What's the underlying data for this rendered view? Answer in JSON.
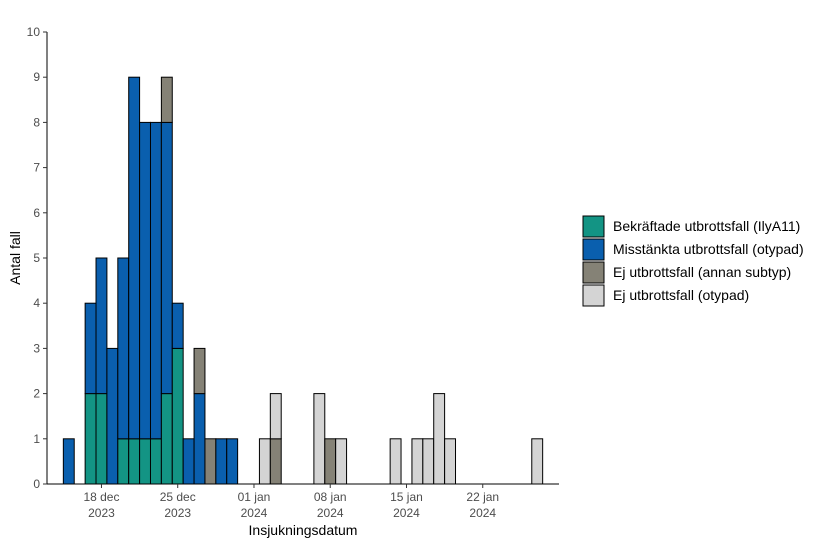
{
  "chart_data": {
    "type": "bar",
    "stacked": true,
    "xlabel": "Insjukningsdatum",
    "ylabel": "Antal fall",
    "ylim": [
      0,
      10
    ],
    "yticks": [
      "0",
      "1",
      "2",
      "3",
      "4",
      "5",
      "6",
      "7",
      "8",
      "9",
      "10"
    ],
    "xlim": [
      "2023-12-13",
      "2024-01-29"
    ],
    "xticks": [
      {
        "date": "2023-12-18",
        "line1": "18 dec",
        "line2": "2023"
      },
      {
        "date": "2023-12-25",
        "line1": "25 dec",
        "line2": "2023"
      },
      {
        "date": "2024-01-01",
        "line1": "01 jan",
        "line2": "2024"
      },
      {
        "date": "2024-01-08",
        "line1": "08 jan",
        "line2": "2024"
      },
      {
        "date": "2024-01-15",
        "line1": "15 jan",
        "line2": "2024"
      },
      {
        "date": "2024-01-22",
        "line1": "22 jan",
        "line2": "2024"
      }
    ],
    "grid": false,
    "legend_position": "right",
    "x": [
      "2023-12-15",
      "2023-12-16",
      "2023-12-17",
      "2023-12-18",
      "2023-12-19",
      "2023-12-20",
      "2023-12-21",
      "2023-12-22",
      "2023-12-23",
      "2023-12-24",
      "2023-12-25",
      "2023-12-26",
      "2023-12-27",
      "2023-12-28",
      "2023-12-29",
      "2023-12-30",
      "2023-12-31",
      "2024-01-01",
      "2024-01-02",
      "2024-01-03",
      "2024-01-04",
      "2024-01-05",
      "2024-01-06",
      "2024-01-07",
      "2024-01-08",
      "2024-01-09",
      "2024-01-10",
      "2024-01-11",
      "2024-01-12",
      "2024-01-13",
      "2024-01-14",
      "2024-01-15",
      "2024-01-16",
      "2024-01-17",
      "2024-01-18",
      "2024-01-19",
      "2024-01-20",
      "2024-01-21",
      "2024-01-22",
      "2024-01-23",
      "2024-01-24",
      "2024-01-25",
      "2024-01-26",
      "2024-01-27"
    ],
    "series": [
      {
        "name": "Bekräftade utbrottsfall (IlyA11)",
        "color": "#139484",
        "values": [
          0,
          0,
          2,
          2,
          0,
          1,
          1,
          1,
          1,
          2,
          3,
          0,
          0,
          0,
          0,
          0,
          0,
          0,
          0,
          0,
          0,
          0,
          0,
          0,
          0,
          0,
          0,
          0,
          0,
          0,
          0,
          0,
          0,
          0,
          0,
          0,
          0,
          0,
          0,
          0,
          0,
          0,
          0,
          0
        ]
      },
      {
        "name": "Misstänkta utbrottsfall (otypad)",
        "color": "#0a5fae",
        "values": [
          1,
          0,
          2,
          3,
          3,
          4,
          8,
          7,
          7,
          6,
          1,
          1,
          2,
          0,
          1,
          1,
          0,
          0,
          0,
          0,
          0,
          0,
          0,
          0,
          0,
          0,
          0,
          0,
          0,
          0,
          0,
          0,
          0,
          0,
          0,
          0,
          0,
          0,
          0,
          0,
          0,
          0,
          0,
          0
        ]
      },
      {
        "name": "Ej utbrottsfall (annan subtyp)",
        "color": "#858276",
        "values": [
          0,
          0,
          0,
          0,
          0,
          0,
          0,
          0,
          0,
          1,
          0,
          0,
          1,
          1,
          0,
          0,
          0,
          0,
          0,
          1,
          0,
          0,
          0,
          0,
          1,
          0,
          0,
          0,
          0,
          0,
          0,
          0,
          0,
          0,
          0,
          0,
          0,
          0,
          0,
          0,
          0,
          0,
          0,
          0
        ]
      },
      {
        "name": "Ej utbrottsfall (otypad)",
        "color": "#d4d4d4",
        "values": [
          0,
          0,
          0,
          0,
          0,
          0,
          0,
          0,
          0,
          0,
          0,
          0,
          0,
          0,
          0,
          0,
          0,
          0,
          1,
          1,
          0,
          0,
          0,
          2,
          0,
          1,
          0,
          0,
          0,
          0,
          1,
          0,
          1,
          1,
          2,
          1,
          0,
          0,
          0,
          0,
          0,
          0,
          0,
          1
        ]
      }
    ]
  }
}
